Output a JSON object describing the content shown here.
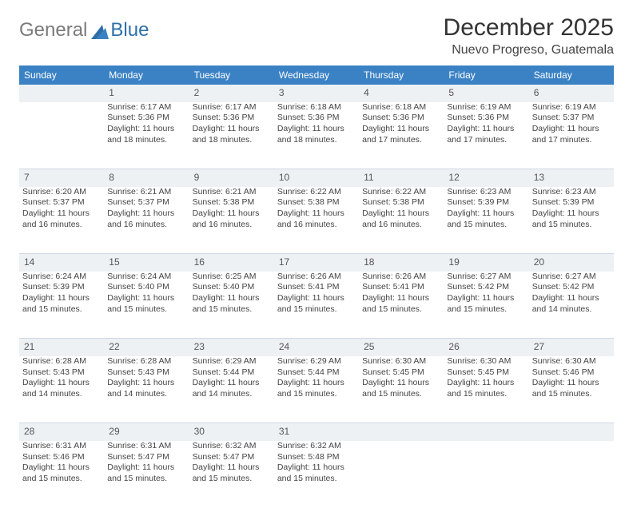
{
  "brand": {
    "part1": "General",
    "part2": "Blue"
  },
  "title": "December 2025",
  "location": "Nuevo Progreso, Guatemala",
  "colors": {
    "header_bg": "#3b82c4",
    "header_text": "#ffffff",
    "daynum_bg": "#edf1f4",
    "border": "#cfd8e2",
    "body_text": "#444444",
    "logo_gray": "#7a7a7a",
    "logo_blue": "#2f6fa7",
    "background": "#ffffff"
  },
  "typography": {
    "title_fontsize": 30,
    "location_fontsize": 16,
    "header_fontsize": 12,
    "cell_fontsize": 10.5,
    "logo_fontsize": 24
  },
  "day_headers": [
    "Sunday",
    "Monday",
    "Tuesday",
    "Wednesday",
    "Thursday",
    "Friday",
    "Saturday"
  ],
  "weeks": [
    {
      "nums": [
        "",
        "1",
        "2",
        "3",
        "4",
        "5",
        "6"
      ],
      "cells": [
        {
          "sunrise": "",
          "sunset": "",
          "daylight": ""
        },
        {
          "sunrise": "Sunrise: 6:17 AM",
          "sunset": "Sunset: 5:36 PM",
          "daylight": "Daylight: 11 hours and 18 minutes."
        },
        {
          "sunrise": "Sunrise: 6:17 AM",
          "sunset": "Sunset: 5:36 PM",
          "daylight": "Daylight: 11 hours and 18 minutes."
        },
        {
          "sunrise": "Sunrise: 6:18 AM",
          "sunset": "Sunset: 5:36 PM",
          "daylight": "Daylight: 11 hours and 18 minutes."
        },
        {
          "sunrise": "Sunrise: 6:18 AM",
          "sunset": "Sunset: 5:36 PM",
          "daylight": "Daylight: 11 hours and 17 minutes."
        },
        {
          "sunrise": "Sunrise: 6:19 AM",
          "sunset": "Sunset: 5:36 PM",
          "daylight": "Daylight: 11 hours and 17 minutes."
        },
        {
          "sunrise": "Sunrise: 6:19 AM",
          "sunset": "Sunset: 5:37 PM",
          "daylight": "Daylight: 11 hours and 17 minutes."
        }
      ]
    },
    {
      "nums": [
        "7",
        "8",
        "9",
        "10",
        "11",
        "12",
        "13"
      ],
      "cells": [
        {
          "sunrise": "Sunrise: 6:20 AM",
          "sunset": "Sunset: 5:37 PM",
          "daylight": "Daylight: 11 hours and 16 minutes."
        },
        {
          "sunrise": "Sunrise: 6:21 AM",
          "sunset": "Sunset: 5:37 PM",
          "daylight": "Daylight: 11 hours and 16 minutes."
        },
        {
          "sunrise": "Sunrise: 6:21 AM",
          "sunset": "Sunset: 5:38 PM",
          "daylight": "Daylight: 11 hours and 16 minutes."
        },
        {
          "sunrise": "Sunrise: 6:22 AM",
          "sunset": "Sunset: 5:38 PM",
          "daylight": "Daylight: 11 hours and 16 minutes."
        },
        {
          "sunrise": "Sunrise: 6:22 AM",
          "sunset": "Sunset: 5:38 PM",
          "daylight": "Daylight: 11 hours and 16 minutes."
        },
        {
          "sunrise": "Sunrise: 6:23 AM",
          "sunset": "Sunset: 5:39 PM",
          "daylight": "Daylight: 11 hours and 15 minutes."
        },
        {
          "sunrise": "Sunrise: 6:23 AM",
          "sunset": "Sunset: 5:39 PM",
          "daylight": "Daylight: 11 hours and 15 minutes."
        }
      ]
    },
    {
      "nums": [
        "14",
        "15",
        "16",
        "17",
        "18",
        "19",
        "20"
      ],
      "cells": [
        {
          "sunrise": "Sunrise: 6:24 AM",
          "sunset": "Sunset: 5:39 PM",
          "daylight": "Daylight: 11 hours and 15 minutes."
        },
        {
          "sunrise": "Sunrise: 6:24 AM",
          "sunset": "Sunset: 5:40 PM",
          "daylight": "Daylight: 11 hours and 15 minutes."
        },
        {
          "sunrise": "Sunrise: 6:25 AM",
          "sunset": "Sunset: 5:40 PM",
          "daylight": "Daylight: 11 hours and 15 minutes."
        },
        {
          "sunrise": "Sunrise: 6:26 AM",
          "sunset": "Sunset: 5:41 PM",
          "daylight": "Daylight: 11 hours and 15 minutes."
        },
        {
          "sunrise": "Sunrise: 6:26 AM",
          "sunset": "Sunset: 5:41 PM",
          "daylight": "Daylight: 11 hours and 15 minutes."
        },
        {
          "sunrise": "Sunrise: 6:27 AM",
          "sunset": "Sunset: 5:42 PM",
          "daylight": "Daylight: 11 hours and 15 minutes."
        },
        {
          "sunrise": "Sunrise: 6:27 AM",
          "sunset": "Sunset: 5:42 PM",
          "daylight": "Daylight: 11 hours and 14 minutes."
        }
      ]
    },
    {
      "nums": [
        "21",
        "22",
        "23",
        "24",
        "25",
        "26",
        "27"
      ],
      "cells": [
        {
          "sunrise": "Sunrise: 6:28 AM",
          "sunset": "Sunset: 5:43 PM",
          "daylight": "Daylight: 11 hours and 14 minutes."
        },
        {
          "sunrise": "Sunrise: 6:28 AM",
          "sunset": "Sunset: 5:43 PM",
          "daylight": "Daylight: 11 hours and 14 minutes."
        },
        {
          "sunrise": "Sunrise: 6:29 AM",
          "sunset": "Sunset: 5:44 PM",
          "daylight": "Daylight: 11 hours and 14 minutes."
        },
        {
          "sunrise": "Sunrise: 6:29 AM",
          "sunset": "Sunset: 5:44 PM",
          "daylight": "Daylight: 11 hours and 15 minutes."
        },
        {
          "sunrise": "Sunrise: 6:30 AM",
          "sunset": "Sunset: 5:45 PM",
          "daylight": "Daylight: 11 hours and 15 minutes."
        },
        {
          "sunrise": "Sunrise: 6:30 AM",
          "sunset": "Sunset: 5:45 PM",
          "daylight": "Daylight: 11 hours and 15 minutes."
        },
        {
          "sunrise": "Sunrise: 6:30 AM",
          "sunset": "Sunset: 5:46 PM",
          "daylight": "Daylight: 11 hours and 15 minutes."
        }
      ]
    },
    {
      "nums": [
        "28",
        "29",
        "30",
        "31",
        "",
        "",
        ""
      ],
      "cells": [
        {
          "sunrise": "Sunrise: 6:31 AM",
          "sunset": "Sunset: 5:46 PM",
          "daylight": "Daylight: 11 hours and 15 minutes."
        },
        {
          "sunrise": "Sunrise: 6:31 AM",
          "sunset": "Sunset: 5:47 PM",
          "daylight": "Daylight: 11 hours and 15 minutes."
        },
        {
          "sunrise": "Sunrise: 6:32 AM",
          "sunset": "Sunset: 5:47 PM",
          "daylight": "Daylight: 11 hours and 15 minutes."
        },
        {
          "sunrise": "Sunrise: 6:32 AM",
          "sunset": "Sunset: 5:48 PM",
          "daylight": "Daylight: 11 hours and 15 minutes."
        },
        {
          "sunrise": "",
          "sunset": "",
          "daylight": ""
        },
        {
          "sunrise": "",
          "sunset": "",
          "daylight": ""
        },
        {
          "sunrise": "",
          "sunset": "",
          "daylight": ""
        }
      ]
    }
  ]
}
